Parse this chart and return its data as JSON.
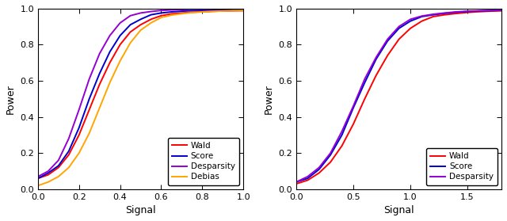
{
  "ylabel": "Power",
  "xlabel": "Signal",
  "plot1": {
    "x": [
      0.0,
      0.05,
      0.1,
      0.15,
      0.2,
      0.25,
      0.3,
      0.35,
      0.4,
      0.45,
      0.5,
      0.55,
      0.6,
      0.65,
      0.7,
      0.75,
      0.8,
      0.85,
      0.9,
      0.95,
      1.0
    ],
    "wald": [
      0.06,
      0.08,
      0.12,
      0.19,
      0.3,
      0.44,
      0.58,
      0.7,
      0.8,
      0.87,
      0.91,
      0.94,
      0.96,
      0.97,
      0.975,
      0.979,
      0.982,
      0.984,
      0.986,
      0.987,
      0.988
    ],
    "score": [
      0.06,
      0.09,
      0.13,
      0.21,
      0.34,
      0.5,
      0.64,
      0.76,
      0.85,
      0.91,
      0.94,
      0.965,
      0.975,
      0.981,
      0.985,
      0.988,
      0.99,
      0.991,
      0.992,
      0.993,
      0.994
    ],
    "desparsity": [
      0.07,
      0.1,
      0.16,
      0.28,
      0.44,
      0.61,
      0.75,
      0.85,
      0.92,
      0.96,
      0.975,
      0.983,
      0.989,
      0.992,
      0.994,
      0.995,
      0.996,
      0.997,
      0.997,
      0.998,
      0.998
    ],
    "debias": [
      0.02,
      0.04,
      0.07,
      0.12,
      0.2,
      0.31,
      0.45,
      0.59,
      0.71,
      0.81,
      0.88,
      0.92,
      0.95,
      0.963,
      0.971,
      0.977,
      0.981,
      0.984,
      0.986,
      0.988,
      0.989
    ],
    "xlim": [
      0.0,
      1.0
    ],
    "ylim": [
      0.0,
      1.0
    ],
    "xticks": [
      0.0,
      0.2,
      0.4,
      0.6,
      0.8,
      1.0
    ],
    "yticks": [
      0.0,
      0.2,
      0.4,
      0.6,
      0.8,
      1.0
    ]
  },
  "plot2": {
    "x": [
      0.0,
      0.1,
      0.2,
      0.3,
      0.4,
      0.5,
      0.6,
      0.7,
      0.8,
      0.9,
      1.0,
      1.1,
      1.2,
      1.3,
      1.4,
      1.5,
      1.6,
      1.7,
      1.8
    ],
    "wald": [
      0.03,
      0.05,
      0.09,
      0.15,
      0.24,
      0.36,
      0.5,
      0.63,
      0.74,
      0.83,
      0.89,
      0.93,
      0.955,
      0.965,
      0.972,
      0.978,
      0.982,
      0.985,
      0.987
    ],
    "score": [
      0.04,
      0.06,
      0.11,
      0.19,
      0.3,
      0.45,
      0.59,
      0.72,
      0.82,
      0.89,
      0.93,
      0.955,
      0.965,
      0.973,
      0.979,
      0.983,
      0.986,
      0.988,
      0.99
    ],
    "desparsity": [
      0.04,
      0.07,
      0.12,
      0.2,
      0.32,
      0.46,
      0.61,
      0.73,
      0.83,
      0.9,
      0.94,
      0.958,
      0.968,
      0.975,
      0.981,
      0.985,
      0.987,
      0.989,
      0.991
    ],
    "xlim": [
      0.0,
      1.8
    ],
    "ylim": [
      0.0,
      1.0
    ],
    "xticks": [
      0.0,
      0.5,
      1.0,
      1.5
    ],
    "yticks": [
      0.0,
      0.2,
      0.4,
      0.6,
      0.8,
      1.0
    ]
  },
  "colors": {
    "wald": "#FF0000",
    "score": "#0000CD",
    "desparsity": "#9400D3",
    "debias": "#FFA500"
  },
  "linewidth": 1.4,
  "legend_fontsize": 7.5,
  "axis_fontsize": 9,
  "tick_fontsize": 8,
  "background": "#FFFFFF"
}
